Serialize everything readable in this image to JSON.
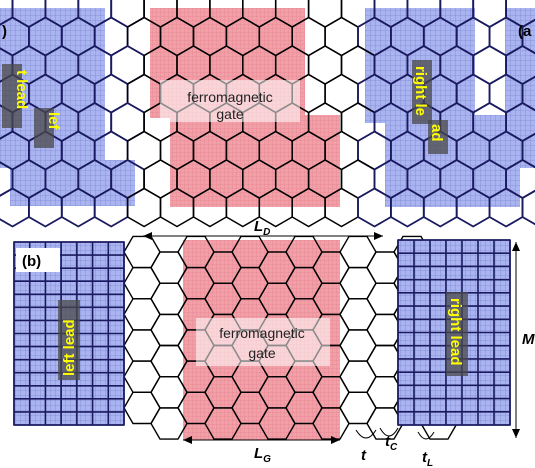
{
  "panel_a": {
    "label": ")",
    "label_right": "(a",
    "left_lead_label": "t lead",
    "left_lead_label_2": "lef",
    "right_lead_label": "right le",
    "right_lead_label_2": "ad",
    "gate_label_line1": "ferromagnetic",
    "gate_label_line2": "gate"
  },
  "panel_b": {
    "label": "(b)",
    "left_lead_label": "left lead",
    "right_lead_label": "right lead",
    "gate_label_line1": "ferromagnetic",
    "gate_label_line2": "gate",
    "dim_LD": "L",
    "dim_LD_sub": "D",
    "dim_LG": "L",
    "dim_LG_sub": "G",
    "dim_M": "M",
    "hop_t": "t",
    "hop_tC": "t",
    "hop_tC_sub": "C",
    "hop_tL": "t",
    "hop_tL_sub": "L"
  },
  "colors": {
    "lead_fill": "#aab4f0",
    "lead_grid": "#1a1a80",
    "gate_fill": "#f2a0a8",
    "hex_stroke": "#000000",
    "label_yellow": "#ffff00"
  }
}
